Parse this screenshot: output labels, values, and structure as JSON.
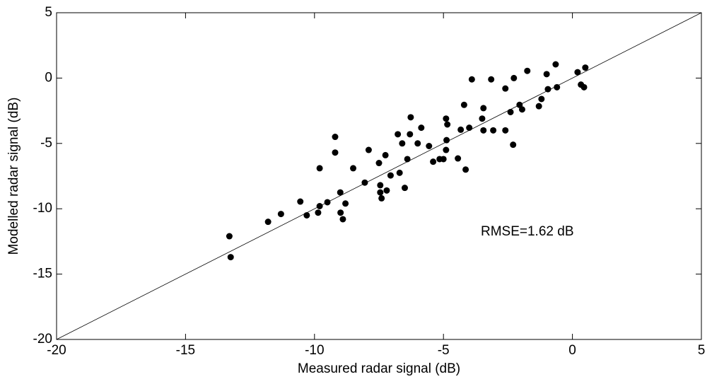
{
  "chart_data": {
    "type": "scatter",
    "x_label": "Measured radar signal (dB)",
    "y_label": "Modelled radar signal (dB)",
    "annotation": "RMSE=1.62 dB",
    "color": "#000000",
    "identity_line": true,
    "xlim": [
      -20,
      5
    ],
    "ylim": [
      -20,
      5
    ],
    "xticks": [
      -20,
      -15,
      -10,
      -5,
      0,
      5
    ],
    "yticks": [
      -20,
      -15,
      -10,
      -5,
      0,
      5
    ],
    "x": [
      -13.3,
      -13.25,
      -11.8,
      -11.3,
      -10.55,
      -10.3,
      -9.86,
      -9.8,
      -9.8,
      -9.5,
      -9.2,
      -9.2,
      -9.0,
      -8.99,
      -8.9,
      -8.8,
      -8.5,
      -8.05,
      -7.9,
      -7.5,
      -7.45,
      -7.45,
      -7.4,
      -7.25,
      -7.2,
      -7.05,
      -6.77,
      -6.7,
      -6.6,
      -6.5,
      -6.4,
      -6.3,
      -6.27,
      -6.0,
      -5.86,
      -5.56,
      -5.4,
      -5.15,
      -5.0,
      -4.9,
      -4.9,
      -4.88,
      -4.85,
      -4.44,
      -4.33,
      -4.2,
      -4.14,
      -4.0,
      -3.9,
      -3.5,
      -3.45,
      -3.45,
      -3.15,
      -3.07,
      -2.6,
      -2.6,
      -2.4,
      -2.3,
      -2.27,
      -2.05,
      -1.95,
      -1.75,
      -1.3,
      -1.2,
      -1.0,
      -0.95,
      -0.65,
      -0.6,
      0.2,
      0.33,
      0.45,
      0.5
    ],
    "y": [
      -12.1,
      -13.7,
      -11.0,
      -10.4,
      -9.45,
      -10.5,
      -10.3,
      -9.8,
      -6.9,
      -9.5,
      -4.5,
      -5.7,
      -8.75,
      -10.3,
      -10.8,
      -9.6,
      -6.9,
      -8.0,
      -5.5,
      -6.5,
      -8.2,
      -8.75,
      -9.2,
      -5.9,
      -8.6,
      -7.45,
      -4.3,
      -7.25,
      -5.0,
      -8.4,
      -6.2,
      -4.3,
      -3.0,
      -5.0,
      -3.8,
      -5.2,
      -6.4,
      -6.2,
      -6.2,
      -3.1,
      -5.5,
      -4.75,
      -3.55,
      -6.15,
      -3.95,
      -2.05,
      -7.0,
      -3.8,
      -0.1,
      -3.1,
      -2.3,
      -4.0,
      -0.1,
      -4.0,
      -4.0,
      -0.8,
      -2.6,
      -5.1,
      0.0,
      -2.05,
      -2.4,
      0.55,
      -2.15,
      -1.6,
      0.3,
      -0.85,
      1.05,
      -0.7,
      0.45,
      -0.5,
      -0.7,
      0.8
    ]
  }
}
